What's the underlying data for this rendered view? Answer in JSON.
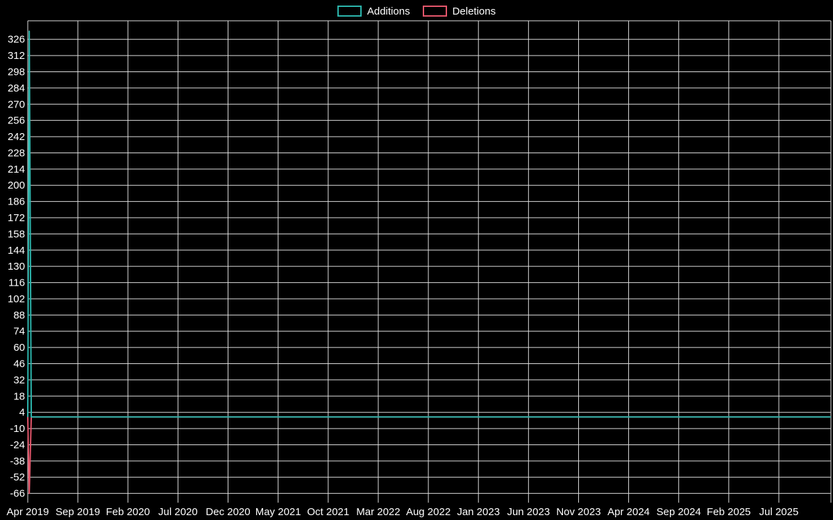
{
  "chart_data": {
    "type": "line",
    "title": "",
    "legend": {
      "position": "top-center",
      "labels": [
        "Additions",
        "Deletions"
      ]
    },
    "x_axis": {
      "label": "",
      "tick_labels": [
        "Apr 2019",
        "Sep 2019",
        "Feb 2020",
        "Jul 2020",
        "Dec 2020",
        "May 2021",
        "Oct 2021",
        "Mar 2022",
        "Aug 2022",
        "Jan 2023",
        "Jun 2023",
        "Nov 2023",
        "Apr 2024",
        "Sep 2024",
        "Feb 2025",
        "Jul 2025"
      ],
      "tick_positions_months": [
        0,
        5,
        10,
        15,
        20,
        25,
        30,
        35,
        40,
        45,
        50,
        55,
        60,
        65,
        70,
        75
      ],
      "range_months": [
        0,
        80.2
      ]
    },
    "y_axis": {
      "label": "",
      "ticks": [
        326,
        312,
        298,
        284,
        270,
        256,
        242,
        228,
        214,
        200,
        186,
        172,
        158,
        144,
        130,
        116,
        102,
        88,
        74,
        60,
        46,
        32,
        18,
        4,
        -10,
        -24,
        -38,
        -52,
        -66
      ],
      "range": [
        -74,
        342
      ]
    },
    "series": [
      {
        "name": "Additions",
        "color": "#2cb5ac",
        "points": [
          [
            0,
            0
          ],
          [
            0.15,
            333
          ],
          [
            0.35,
            0
          ],
          [
            80.2,
            0
          ]
        ]
      },
      {
        "name": "Deletions",
        "color": "#e4566b",
        "points": [
          [
            0,
            0
          ],
          [
            0.15,
            -66
          ],
          [
            0.35,
            0
          ],
          [
            80.2,
            0
          ]
        ]
      }
    ],
    "grid": {
      "show": true,
      "color": "#dddddd"
    },
    "background": "#000000",
    "text_color": "#ffffff",
    "font_size_ticks": 15
  }
}
